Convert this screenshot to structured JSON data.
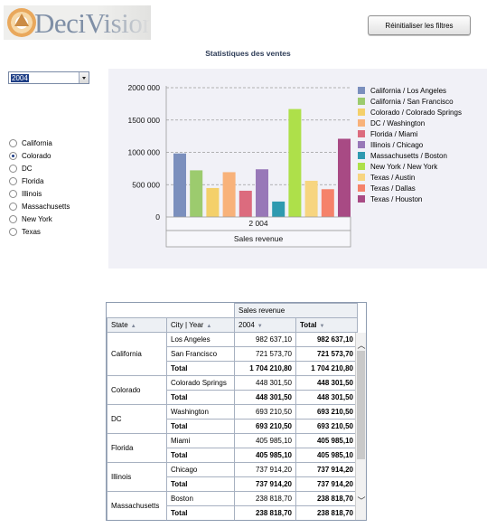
{
  "logo": {
    "text": "DeciVision"
  },
  "toolbar": {
    "reset_label": "Réinitialiser les filtres"
  },
  "title": "Statistiques des ventes",
  "year_select": {
    "value": "2004"
  },
  "states": {
    "selected": "Colorado",
    "items": [
      {
        "label": "California"
      },
      {
        "label": "Colorado"
      },
      {
        "label": "DC"
      },
      {
        "label": "Florida"
      },
      {
        "label": "Illinois"
      },
      {
        "label": "Massachusetts"
      },
      {
        "label": "New York"
      },
      {
        "label": "Texas"
      }
    ]
  },
  "chart_data": {
    "type": "bar",
    "categories": [
      "2 004"
    ],
    "xlabel": "Sales revenue",
    "ylim": [
      0,
      2000000
    ],
    "yticks": [
      0,
      500000,
      1000000,
      1500000,
      2000000
    ],
    "ytick_labels": [
      "0",
      "500 000",
      "1000 000",
      "1500 000",
      "2000 000"
    ],
    "grid": true,
    "legend_position": "right",
    "series": [
      {
        "name": "California / Los Angeles",
        "color": "#7b8fbd",
        "values": [
          982637.1
        ]
      },
      {
        "name": "California / San Francisco",
        "color": "#9ccb6e",
        "values": [
          721573.7
        ]
      },
      {
        "name": "Colorado / Colorado Springs",
        "color": "#f4d06a",
        "values": [
          448301.5
        ]
      },
      {
        "name": "DC / Washington",
        "color": "#f8b27a",
        "values": [
          693210.5
        ]
      },
      {
        "name": "Florida / Miami",
        "color": "#dc6b7e",
        "values": [
          405985.1
        ]
      },
      {
        "name": "Illinois / Chicago",
        "color": "#9878b8",
        "values": [
          737914.2
        ]
      },
      {
        "name": "Massachusetts / Boston",
        "color": "#2f9ab0",
        "values": [
          238818.7
        ]
      },
      {
        "name": "New York / New York",
        "color": "#aee04a",
        "values": [
          1670000
        ]
      },
      {
        "name": "Texas / Austin",
        "color": "#f7d580",
        "values": [
          560000
        ]
      },
      {
        "name": "Texas / Dallas",
        "color": "#f5826a",
        "values": [
          430000
        ]
      },
      {
        "name": "Texas / Houston",
        "color": "#a84a84",
        "values": [
          1210000
        ]
      }
    ]
  },
  "table": {
    "measure_header": "Sales revenue",
    "columns": [
      "State",
      "City | Year",
      "2004",
      "Total"
    ],
    "rows": [
      {
        "state": "California",
        "city": "Los Angeles",
        "y2004": "982 637,10",
        "total": "982 637,10"
      },
      {
        "city": "San Francisco",
        "y2004": "721 573,70",
        "total": "721 573,70"
      },
      {
        "city": "Total",
        "y2004": "1 704 210,80",
        "total": "1 704 210,80",
        "is_total": true
      },
      {
        "state": "Colorado",
        "city": "Colorado Springs",
        "y2004": "448 301,50",
        "total": "448 301,50"
      },
      {
        "city": "Total",
        "y2004": "448 301,50",
        "total": "448 301,50",
        "is_total": true
      },
      {
        "state": "DC",
        "city": "Washington",
        "y2004": "693 210,50",
        "total": "693 210,50"
      },
      {
        "city": "Total",
        "y2004": "693 210,50",
        "total": "693 210,50",
        "is_total": true
      },
      {
        "state": "Florida",
        "city": "Miami",
        "y2004": "405 985,10",
        "total": "405 985,10"
      },
      {
        "city": "Total",
        "y2004": "405 985,10",
        "total": "405 985,10",
        "is_total": true
      },
      {
        "state": "Illinois",
        "city": "Chicago",
        "y2004": "737 914,20",
        "total": "737 914,20"
      },
      {
        "city": "Total",
        "y2004": "737 914,20",
        "total": "737 914,20",
        "is_total": true
      },
      {
        "state": "Massachusetts",
        "city": "Boston",
        "y2004": "238 818,70",
        "total": "238 818,70"
      },
      {
        "city": "Total",
        "y2004": "238 818,70",
        "total": "238 818,70",
        "is_total": true
      }
    ]
  },
  "icons": {
    "scroll_up": "chevron-up-icon",
    "scroll_down": "chevron-down-icon",
    "sort": "sort-icon"
  }
}
